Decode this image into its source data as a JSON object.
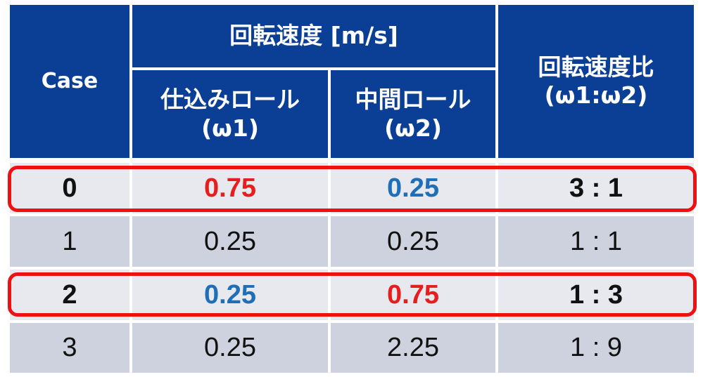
{
  "table": {
    "header": {
      "case": "Case",
      "rotation_speed_group": "回転速度 [m/s]",
      "feed_roll": {
        "line1": "仕込みロール",
        "line2": "(ω1)"
      },
      "middle_roll": {
        "line1": "中間ロール",
        "line2": "(ω2)"
      },
      "ratio": {
        "line1": "回転速度比",
        "line2": "(ω1:ω2)"
      }
    },
    "rows": [
      {
        "case": "0",
        "omega1": "0.75",
        "omega2": "0.25",
        "ratio": "3 : 1"
      },
      {
        "case": "1",
        "omega1": "0.25",
        "omega2": "0.25",
        "ratio": "1 : 1"
      },
      {
        "case": "2",
        "omega1": "0.25",
        "omega2": "0.75",
        "ratio": "1 : 3"
      },
      {
        "case": "3",
        "omega1": "0.25",
        "omega2": "2.25",
        "ratio": "1 : 9"
      }
    ]
  },
  "colors": {
    "header_bg": "#0b3f96",
    "highlight_border": "#ee1111",
    "value_high": "#e61e1e",
    "value_low": "#1f6fb8"
  },
  "highlighted_rows": [
    "0",
    "2"
  ]
}
